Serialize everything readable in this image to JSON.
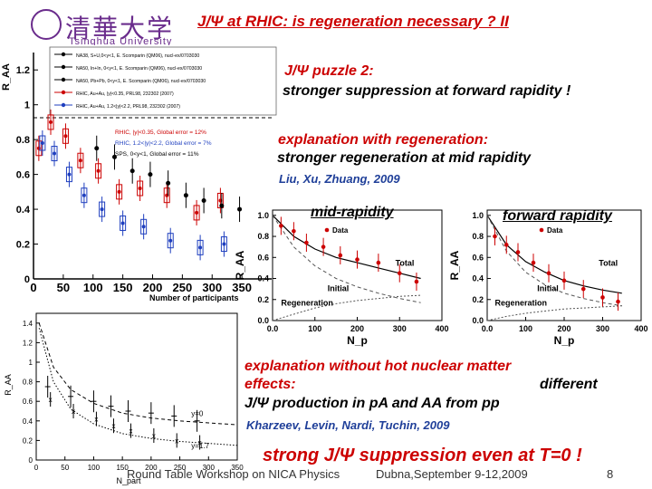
{
  "header": {
    "title": "J/Ψ at RHIC: is regeneration necessary ?  II",
    "logo_text": "清華大学",
    "logo_sub": "Tsinghua University"
  },
  "text": {
    "puzzle_line1": "J/Ψ puzzle 2:",
    "puzzle_line2": "stronger  suppression at forward rapidity !",
    "explain1_line1": "explanation with regeneration:",
    "explain1_line2": "stronger  regeneration at mid rapidity",
    "ref1": "Liu, Xu, Zhuang, 2009",
    "explain2_line1": "explanation without hot nuclear matter",
    "explain2_line2a": "effects:",
    "explain2_line2b": "different",
    "explain2_line3": "J/Ψ production in pA and AA from pp",
    "ref2": "Kharzeev, Levin, Nardi, Tuchin, 2009",
    "conclusion": "strong J/Ψ suppression even at T=0 !"
  },
  "footer": {
    "workshop": "Round Table Workshop on NICA Physics",
    "location": "Dubna,September 9-12,2009",
    "page": "8"
  },
  "colors": {
    "accent_red": "#cc0000",
    "ref_blue": "#1f3f99"
  },
  "main_plot": {
    "ylabel": "R_AA",
    "xlabel": "Number of participants",
    "legend": [
      "NA38, S+U,0<y<1, E. Scomparin (QM06), nucl-ex/0703030",
      "NA50, In+In, 0<y<1, E. Scomparin (QM06), nucl-ex/0703030",
      "NA50, Pb+Pb, 0<y<1, E. Scomparin (QM06), nucl-ex/0703030",
      "RHIC, Au+Au, |y|<0.35, PRL98, 232302 (2007)",
      "RHIC, Au+Au, 1.2<|y|<2.2, PRL98, 232302 (2007)"
    ],
    "notes": [
      "RHIC, |y|<0.35, Global error = 12%",
      "RHIC, 1.2<|y|<2.2, Global error = 7%",
      "SPS, 0<y<1, Global error = 11%"
    ]
  },
  "chart_data": [
    {
      "type": "scatter",
      "xlabel": "Number of participants",
      "ylabel": "R_AA",
      "xlim": [
        0,
        400
      ],
      "ylim": [
        0,
        1.3
      ],
      "xticks": [
        0,
        50,
        100,
        150,
        200,
        250,
        300,
        350
      ],
      "yticks": [
        0,
        0.2,
        0.4,
        0.6,
        0.8,
        1.0,
        1.2
      ],
      "ytick_labels": [
        "0",
        "0.2",
        "0.4",
        "0.6",
        "0.8",
        "1",
        "1.2"
      ],
      "series": [
        {
          "name": "RHIC, Au+Au, |y|<0.35, PRL98, 232302 (2007)",
          "color": "#cc0000",
          "x": [
            15,
            35,
            60,
            85,
            115,
            150,
            185,
            230,
            280,
            320
          ],
          "y": [
            0.75,
            0.9,
            0.82,
            0.68,
            0.62,
            0.5,
            0.52,
            0.48,
            0.38,
            0.45
          ]
        },
        {
          "name": "RHIC, Au+Au, 1.2<|y|<2.2, PRL98, 232302 (2007)",
          "color": "#1f3fbf",
          "x": [
            15,
            35,
            60,
            85,
            115,
            150,
            185,
            230,
            280,
            320
          ],
          "y": [
            0.78,
            0.72,
            0.6,
            0.48,
            0.4,
            0.32,
            0.3,
            0.22,
            0.18,
            0.2
          ]
        },
        {
          "name": "NA50, Pb+Pb, 0<y<1, E. Scomparin (QM06), nucl-ex/0703030",
          "color": "#000000",
          "x": [
            100,
            130,
            160,
            190,
            220,
            250,
            280,
            310,
            340
          ],
          "y": [
            0.75,
            0.7,
            0.62,
            0.6,
            0.55,
            0.48,
            0.45,
            0.42,
            0.4
          ]
        }
      ]
    },
    {
      "type": "line",
      "title": "mid-rapidity",
      "xlabel": "N_p",
      "ylabel": "R_AA",
      "xlim": [
        0,
        400
      ],
      "ylim": [
        0,
        1.05
      ],
      "xticks": [
        0,
        100,
        200,
        300,
        400
      ],
      "xtick_labels": [
        "0.0",
        "100",
        "200",
        "300",
        "400"
      ],
      "yticks": [
        0,
        0.2,
        0.4,
        0.6,
        0.8,
        1.0
      ],
      "ytick_labels": [
        "0.0",
        "0.2",
        "0.4",
        "0.6",
        "0.8",
        "1.0"
      ],
      "legend": [
        "Data"
      ],
      "labels": [
        "Initial",
        "Total",
        "Regeneration"
      ],
      "data": {
        "x": [
          20,
          50,
          80,
          120,
          160,
          200,
          250,
          300,
          340
        ],
        "y": [
          0.9,
          0.85,
          0.74,
          0.7,
          0.62,
          0.58,
          0.55,
          0.45,
          0.37
        ]
      },
      "total": {
        "x": [
          0,
          50,
          100,
          150,
          200,
          250,
          300,
          350
        ],
        "y": [
          1.0,
          0.8,
          0.68,
          0.6,
          0.55,
          0.5,
          0.45,
          0.4
        ]
      },
      "initial": {
        "x": [
          0,
          50,
          100,
          150,
          200,
          250,
          300,
          350
        ],
        "y": [
          1.0,
          0.7,
          0.52,
          0.4,
          0.32,
          0.26,
          0.21,
          0.17
        ]
      },
      "regeneration": {
        "x": [
          0,
          50,
          100,
          150,
          200,
          250,
          300,
          350
        ],
        "y": [
          0.0,
          0.06,
          0.12,
          0.16,
          0.19,
          0.21,
          0.23,
          0.24
        ]
      }
    },
    {
      "type": "line",
      "title": "forward rapidity",
      "xlabel": "N_p",
      "ylabel": "R_AA",
      "xlim": [
        0,
        400
      ],
      "ylim": [
        0,
        1.05
      ],
      "xticks": [
        0,
        100,
        200,
        300,
        400
      ],
      "xtick_labels": [
        "0.0",
        "100",
        "200",
        "300",
        "400"
      ],
      "yticks": [
        0,
        0.2,
        0.4,
        0.6,
        0.8,
        1.0
      ],
      "ytick_labels": [
        "0.0",
        "0.2",
        "0.4",
        "0.6",
        "0.8",
        "1.0"
      ],
      "legend": [
        "Data"
      ],
      "labels": [
        "Initial",
        "Total",
        "Regeneration"
      ],
      "data": {
        "x": [
          20,
          50,
          80,
          120,
          160,
          200,
          250,
          300,
          340
        ],
        "y": [
          0.8,
          0.72,
          0.65,
          0.55,
          0.45,
          0.38,
          0.3,
          0.22,
          0.18
        ]
      },
      "total": {
        "x": [
          0,
          50,
          100,
          150,
          200,
          250,
          300,
          350
        ],
        "y": [
          1.0,
          0.72,
          0.56,
          0.46,
          0.38,
          0.33,
          0.29,
          0.26
        ]
      },
      "initial": {
        "x": [
          0,
          50,
          100,
          150,
          200,
          250,
          300,
          350
        ],
        "y": [
          1.0,
          0.66,
          0.46,
          0.34,
          0.26,
          0.21,
          0.17,
          0.14
        ]
      },
      "regeneration": {
        "x": [
          0,
          50,
          100,
          150,
          200,
          250,
          300,
          350
        ],
        "y": [
          0.0,
          0.04,
          0.07,
          0.09,
          0.11,
          0.12,
          0.13,
          0.14
        ]
      }
    },
    {
      "type": "scatter",
      "xlabel": "N_part",
      "ylabel": "R_AA",
      "xlim": [
        0,
        350
      ],
      "ylim": [
        0,
        1.5
      ],
      "xticks": [
        0,
        50,
        100,
        150,
        200,
        250,
        300,
        350
      ],
      "yticks": [
        0,
        0.2,
        0.4,
        0.6,
        0.8,
        1.0,
        1.2,
        1.4
      ],
      "ytick_labels": [
        "0",
        "0.2",
        "0.4",
        "0.6",
        "0.8",
        "1",
        "1.2",
        "1.4"
      ],
      "labels": [
        "y=0",
        "y=1.7"
      ],
      "data_mid": {
        "x": [
          20,
          60,
          100,
          130,
          160,
          200,
          240,
          280
        ],
        "y": [
          0.75,
          0.65,
          0.6,
          0.55,
          0.5,
          0.48,
          0.45,
          0.4
        ]
      },
      "data_fwd": {
        "x": [
          20,
          60,
          100,
          130,
          160,
          200,
          240,
          280
        ],
        "y": [
          0.62,
          0.5,
          0.42,
          0.35,
          0.3,
          0.25,
          0.2,
          0.18
        ]
      },
      "curve_mid": {
        "x": [
          5,
          30,
          60,
          100,
          150,
          200,
          250,
          300,
          350
        ],
        "y": [
          1.4,
          0.95,
          0.72,
          0.58,
          0.48,
          0.43,
          0.4,
          0.38,
          0.36
        ]
      },
      "curve_fwd": {
        "x": [
          5,
          30,
          60,
          100,
          150,
          200,
          250,
          300,
          350
        ],
        "y": [
          1.35,
          0.8,
          0.52,
          0.37,
          0.27,
          0.22,
          0.19,
          0.17,
          0.15
        ]
      }
    }
  ]
}
